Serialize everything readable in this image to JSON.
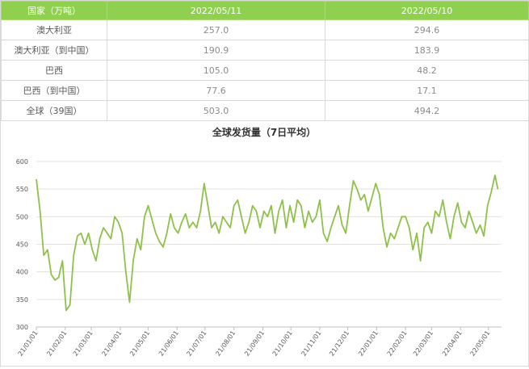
{
  "table": {
    "headers": [
      "国家（万吨）",
      "2022/05/11",
      "2022/05/10"
    ],
    "rows": [
      {
        "label": "澳大利亚",
        "v1": "257.0",
        "v2": "294.6"
      },
      {
        "label": "澳大利亚（到中国）",
        "v1": "190.9",
        "v2": "183.9"
      },
      {
        "label": "巴西",
        "v1": "105.0",
        "v2": "48.2"
      },
      {
        "label": "巴西（到中国）",
        "v1": "77.6",
        "v2": "17.1"
      },
      {
        "label": "全球（39国）",
        "v1": "503.0",
        "v2": "494.2"
      }
    ]
  },
  "chart_data": {
    "type": "line",
    "title": "全球发货量（7日平均）",
    "xlabel": "",
    "ylabel": "",
    "ylim": [
      300,
      600
    ],
    "yticks": [
      300,
      350,
      400,
      450,
      500,
      550,
      600
    ],
    "xticks": [
      "21/01/01",
      "21/02/01",
      "21/03/01",
      "21/04/01",
      "21/05/01",
      "21/06/01",
      "21/07/01",
      "21/08/01",
      "21/09/01",
      "21/10/01",
      "21/11/01",
      "21/12/01",
      "22/01/01",
      "22/02/01",
      "22/03/01",
      "22/04/01",
      "22/05/01"
    ],
    "grid": "horizontal",
    "color": "#8fc14a",
    "x": [
      "2021-01-01",
      "2021-01-05",
      "2021-01-09",
      "2021-01-13",
      "2021-01-17",
      "2021-01-21",
      "2021-01-25",
      "2021-01-29",
      "2021-02-02",
      "2021-02-06",
      "2021-02-10",
      "2021-02-14",
      "2021-02-18",
      "2021-02-22",
      "2021-02-26",
      "2021-03-02",
      "2021-03-06",
      "2021-03-10",
      "2021-03-14",
      "2021-03-18",
      "2021-03-22",
      "2021-03-26",
      "2021-03-30",
      "2021-04-03",
      "2021-04-07",
      "2021-04-11",
      "2021-04-15",
      "2021-04-19",
      "2021-04-23",
      "2021-04-27",
      "2021-05-01",
      "2021-05-05",
      "2021-05-09",
      "2021-05-13",
      "2021-05-17",
      "2021-05-21",
      "2021-05-25",
      "2021-05-29",
      "2021-06-02",
      "2021-06-06",
      "2021-06-10",
      "2021-06-14",
      "2021-06-18",
      "2021-06-22",
      "2021-06-26",
      "2021-06-30",
      "2021-07-04",
      "2021-07-08",
      "2021-07-12",
      "2021-07-16",
      "2021-07-20",
      "2021-07-24",
      "2021-07-28",
      "2021-08-01",
      "2021-08-05",
      "2021-08-09",
      "2021-08-13",
      "2021-08-17",
      "2021-08-21",
      "2021-08-25",
      "2021-08-29",
      "2021-09-02",
      "2021-09-06",
      "2021-09-10",
      "2021-09-14",
      "2021-09-18",
      "2021-09-22",
      "2021-09-26",
      "2021-09-30",
      "2021-10-04",
      "2021-10-08",
      "2021-10-12",
      "2021-10-16",
      "2021-10-20",
      "2021-10-24",
      "2021-10-28",
      "2021-11-01",
      "2021-11-05",
      "2021-11-09",
      "2021-11-13",
      "2021-11-17",
      "2021-11-21",
      "2021-11-25",
      "2021-11-29",
      "2021-12-03",
      "2021-12-07",
      "2021-12-11",
      "2021-12-15",
      "2021-12-19",
      "2021-12-23",
      "2021-12-27",
      "2021-12-31",
      "2022-01-04",
      "2022-01-08",
      "2022-01-12",
      "2022-01-16",
      "2022-01-20",
      "2022-01-24",
      "2022-01-28",
      "2022-02-01",
      "2022-02-05",
      "2022-02-09",
      "2022-02-13",
      "2022-02-17",
      "2022-02-21",
      "2022-02-25",
      "2022-03-01",
      "2022-03-05",
      "2022-03-09",
      "2022-03-13",
      "2022-03-17",
      "2022-03-21",
      "2022-03-25",
      "2022-03-29",
      "2022-04-02",
      "2022-04-06",
      "2022-04-10",
      "2022-04-14",
      "2022-04-18",
      "2022-04-22",
      "2022-04-26",
      "2022-04-30",
      "2022-05-04",
      "2022-05-08",
      "2022-05-11"
    ],
    "values": [
      568,
      510,
      430,
      440,
      395,
      385,
      390,
      420,
      330,
      340,
      430,
      465,
      470,
      450,
      470,
      440,
      420,
      460,
      480,
      470,
      460,
      500,
      490,
      470,
      400,
      345,
      420,
      460,
      440,
      500,
      520,
      495,
      470,
      455,
      445,
      470,
      505,
      480,
      470,
      490,
      505,
      480,
      490,
      480,
      510,
      560,
      520,
      480,
      490,
      470,
      500,
      490,
      480,
      520,
      530,
      500,
      470,
      490,
      520,
      510,
      480,
      510,
      500,
      520,
      470,
      510,
      530,
      480,
      520,
      490,
      530,
      520,
      480,
      510,
      490,
      500,
      530,
      470,
      455,
      480,
      500,
      520,
      485,
      470,
      520,
      565,
      550,
      530,
      540,
      510,
      535,
      560,
      540,
      480,
      445,
      470,
      460,
      480,
      500,
      500,
      480,
      440,
      470,
      420,
      480,
      490,
      470,
      510,
      500,
      530,
      490,
      460,
      500,
      525,
      490,
      480,
      510,
      490,
      470,
      485,
      465,
      520,
      545,
      575,
      550
    ]
  }
}
